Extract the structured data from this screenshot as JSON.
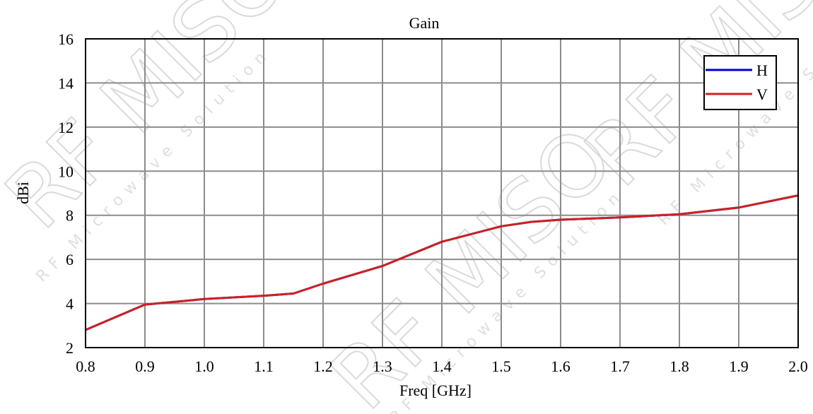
{
  "chart_data": {
    "type": "line",
    "title": "Gain",
    "xlabel": "Freq [GHz]",
    "ylabel": "dBi",
    "xlim": [
      0.8,
      2.0
    ],
    "ylim": [
      2,
      16
    ],
    "x_ticks": [
      "0.8",
      "0.9",
      "1.0",
      "1.1",
      "1.2",
      "1.3",
      "1.4",
      "1.5",
      "1.6",
      "1.7",
      "1.8",
      "1.9",
      "2.0"
    ],
    "y_ticks": [
      "2",
      "4",
      "6",
      "8",
      "10",
      "12",
      "14",
      "16"
    ],
    "grid": true,
    "legend_position": "top-right",
    "series": [
      {
        "name": "H",
        "color": "#0000cc",
        "x": [
          0.8,
          0.9,
          1.0,
          1.1,
          1.15,
          1.2,
          1.3,
          1.4,
          1.5,
          1.55,
          1.6,
          1.7,
          1.8,
          1.9,
          2.0
        ],
        "y": [
          2.8,
          3.95,
          4.2,
          4.35,
          4.45,
          4.9,
          5.7,
          6.8,
          7.5,
          7.7,
          7.8,
          7.9,
          8.05,
          8.35,
          8.9
        ]
      },
      {
        "name": "V",
        "color": "#cc2222",
        "x": [
          0.8,
          0.9,
          1.0,
          1.1,
          1.15,
          1.2,
          1.3,
          1.4,
          1.5,
          1.55,
          1.6,
          1.7,
          1.8,
          1.9,
          2.0
        ],
        "y": [
          2.8,
          3.95,
          4.2,
          4.35,
          4.45,
          4.9,
          5.7,
          6.8,
          7.5,
          7.7,
          7.8,
          7.9,
          8.05,
          8.35,
          8.9
        ]
      }
    ]
  },
  "watermark": {
    "brand": "RF MISO",
    "tagline": "RF Microwave Solution"
  }
}
